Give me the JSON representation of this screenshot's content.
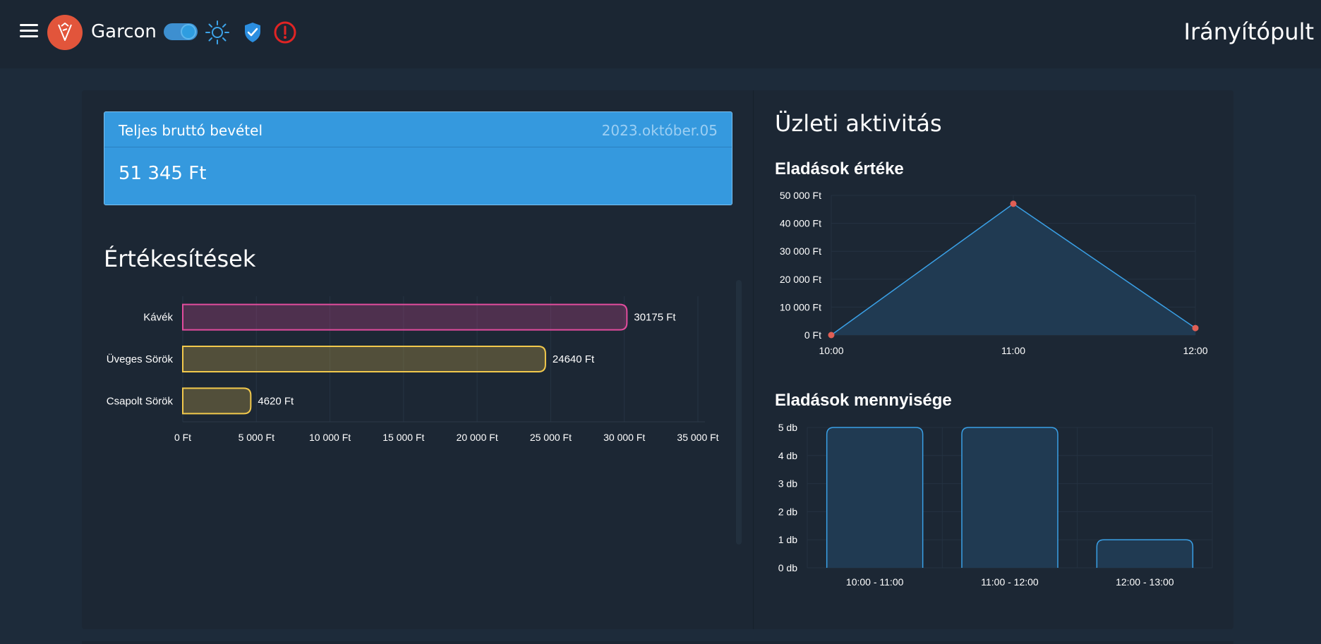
{
  "header": {
    "app_name": "Garcon",
    "page_title": "Irányítópult",
    "icons": [
      "menu-icon",
      "garcon-logo-icon",
      "theme-toggle",
      "sun-icon",
      "shield-check-icon",
      "alert-icon"
    ]
  },
  "revenue_card": {
    "title": "Teljes bruttó bevétel",
    "date": "2023.október.05",
    "value": "51 345 Ft"
  },
  "sales_section": {
    "title": "Értékesítések"
  },
  "activity_section": {
    "title": "Üzleti aktivitás"
  },
  "colors": {
    "accent": "#3599de",
    "pink": "#e24c9d",
    "yellow": "#f2c94c",
    "point": "#e05f55"
  },
  "chart_data": [
    {
      "type": "bar",
      "orientation": "horizontal",
      "categories": [
        "Kávék",
        "Üveges Sörök",
        "Csapolt Sörök"
      ],
      "values": [
        30175,
        24640,
        4620
      ],
      "value_labels": [
        "30175 Ft",
        "24640 Ft",
        "4620 Ft"
      ],
      "xlim": [
        0,
        35000
      ],
      "x_ticks": [
        "0 Ft",
        "5 000 Ft",
        "10 000 Ft",
        "15 000 Ft",
        "20 000 Ft",
        "25 000 Ft",
        "30 000 Ft",
        "35 000 Ft"
      ],
      "bar_colors": [
        "#e24c9d",
        "#f2c94c",
        "#f2c94c"
      ],
      "grid": true
    },
    {
      "type": "area",
      "title": "Eladások értéke",
      "x": [
        "10:00",
        "11:00",
        "12:00"
      ],
      "values": [
        0,
        47000,
        2500
      ],
      "ylim": [
        0,
        50000
      ],
      "y_ticks": [
        "0 Ft",
        "10 000 Ft",
        "20 000 Ft",
        "30 000 Ft",
        "40 000 Ft",
        "50 000 Ft"
      ],
      "grid": true
    },
    {
      "type": "bar",
      "title": "Eladások mennyisége",
      "categories": [
        "10:00 - 11:00",
        "11:00 - 12:00",
        "12:00 - 13:00"
      ],
      "values": [
        5,
        5,
        1
      ],
      "ylim": [
        0,
        5
      ],
      "y_ticks": [
        "0 db",
        "1 db",
        "2 db",
        "3 db",
        "4 db",
        "5 db"
      ],
      "grid": true
    }
  ]
}
